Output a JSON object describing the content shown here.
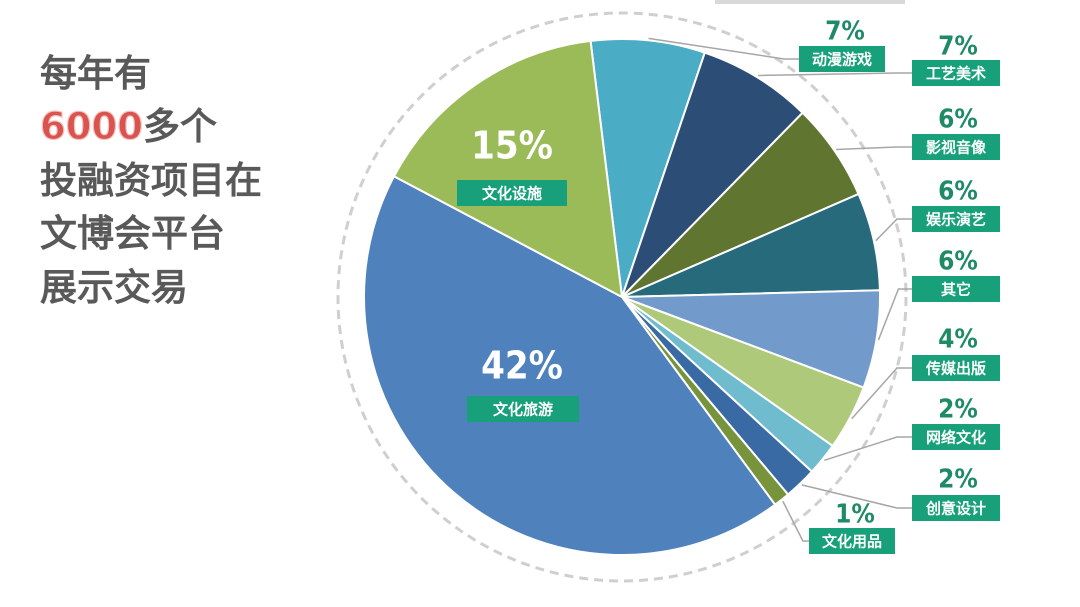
{
  "headline": [
    "每年有",
    "6000",
    "多个",
    "投融资项目在",
    "文博会平台",
    "展示交易"
  ],
  "chart_data": {
    "type": "pie",
    "categories": [
      "动漫游戏",
      "工艺美术",
      "影视音像",
      "娱乐演艺",
      "其它",
      "传媒出版",
      "网络文化",
      "创意设计",
      "文化用品",
      "文化旅游",
      "文化设施"
    ],
    "values": [
      7,
      7,
      6,
      6,
      6,
      4,
      2,
      2,
      1,
      42,
      15
    ],
    "value_labels": [
      "7%",
      "7%",
      "6%",
      "6%",
      "6%",
      "4%",
      "2%",
      "2%",
      "1%",
      "42%",
      "15%"
    ],
    "colors": [
      "#4bacc6",
      "#2c4d75",
      "#5f7530",
      "#276a7c",
      "#729aca",
      "#afc97a",
      "#6fbccf",
      "#3a6aa3",
      "#77933c",
      "#4f81bd",
      "#9bbb59"
    ]
  }
}
